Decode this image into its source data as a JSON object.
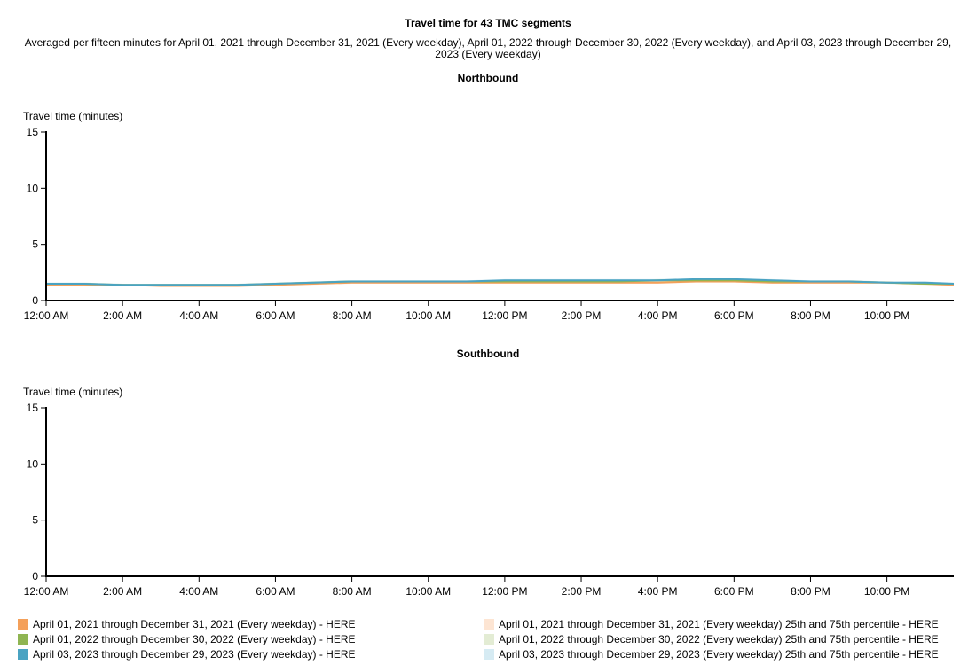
{
  "header": {
    "title": "Travel time for 43 TMC segments",
    "subtitle": "Averaged per fifteen minutes for April 01, 2021 through December 31, 2021 (Every weekday), April 01, 2022 through December 30, 2022 (Every weekday), and April 03, 2023 through December 29, 2023 (Every weekday)"
  },
  "colors": {
    "s2021": "#f4a05a",
    "s2022": "#8fb552",
    "s2023": "#4aa3c2",
    "b2021": "#fde5d3",
    "b2022": "#e3ecd4",
    "b2023": "#d6ebf3"
  },
  "legend": {
    "left": [
      {
        "label": "April 01, 2021 through December 31, 2021 (Every weekday) - HERE",
        "color": "#f4a05a"
      },
      {
        "label": "April 01, 2022 through December 30, 2022 (Every weekday) - HERE",
        "color": "#8fb552"
      },
      {
        "label": "April 03, 2023 through December 29, 2023 (Every weekday) - HERE",
        "color": "#4aa3c2"
      }
    ],
    "right": [
      {
        "label": "April 01, 2021 through December 31, 2021 (Every weekday) 25th and 75th percentile - HERE",
        "color": "#fde5d3"
      },
      {
        "label": "April 01, 2022 through December 30, 2022 (Every weekday) 25th and 75th percentile - HERE",
        "color": "#e3ecd4"
      },
      {
        "label": "April 03, 2023 through December 29, 2023 (Every weekday) 25th and 75th percentile - HERE",
        "color": "#d6ebf3"
      }
    ]
  },
  "chart_data": [
    {
      "type": "line",
      "title": "Northbound",
      "ylabel": "Travel time (minutes)",
      "xlabel": "",
      "ylim": [
        0,
        15
      ],
      "yticks": [
        0,
        5,
        10,
        15
      ],
      "xlim": [
        "12:00 AM",
        "11:45 PM"
      ],
      "xticks": [
        "12:00 AM",
        "2:00 AM",
        "4:00 AM",
        "6:00 AM",
        "8:00 AM",
        "10:00 AM",
        "12:00 PM",
        "2:00 PM",
        "4:00 PM",
        "6:00 PM",
        "8:00 PM",
        "10:00 PM"
      ],
      "x": [
        "12:00 AM",
        "1:00 AM",
        "2:00 AM",
        "3:00 AM",
        "4:00 AM",
        "5:00 AM",
        "6:00 AM",
        "7:00 AM",
        "8:00 AM",
        "9:00 AM",
        "10:00 AM",
        "11:00 AM",
        "12:00 PM",
        "1:00 PM",
        "2:00 PM",
        "3:00 PM",
        "4:00 PM",
        "5:00 PM",
        "6:00 PM",
        "7:00 PM",
        "8:00 PM",
        "9:00 PM",
        "10:00 PM",
        "11:00 PM",
        "11:45 PM"
      ],
      "series": [
        {
          "name": "April 01, 2021 through December 31, 2021 (Every weekday) - HERE",
          "values": [
            1.4,
            1.4,
            1.4,
            1.3,
            1.3,
            1.3,
            1.4,
            1.5,
            1.6,
            1.6,
            1.6,
            1.6,
            1.6,
            1.6,
            1.6,
            1.6,
            1.6,
            1.7,
            1.7,
            1.6,
            1.6,
            1.6,
            1.6,
            1.5,
            1.4
          ]
        },
        {
          "name": "April 01, 2022 through December 30, 2022 (Every weekday) - HERE",
          "values": [
            1.5,
            1.5,
            1.4,
            1.4,
            1.4,
            1.4,
            1.5,
            1.6,
            1.7,
            1.7,
            1.7,
            1.7,
            1.7,
            1.7,
            1.7,
            1.7,
            1.8,
            1.8,
            1.8,
            1.7,
            1.7,
            1.7,
            1.6,
            1.5,
            1.5
          ]
        },
        {
          "name": "April 03, 2023 through December 29, 2023 (Every weekday) - HERE",
          "values": [
            1.5,
            1.5,
            1.4,
            1.4,
            1.4,
            1.4,
            1.5,
            1.6,
            1.7,
            1.7,
            1.7,
            1.7,
            1.8,
            1.8,
            1.8,
            1.8,
            1.8,
            1.9,
            1.9,
            1.8,
            1.7,
            1.7,
            1.6,
            1.6,
            1.5
          ]
        }
      ],
      "bands": [
        {
          "name": "April 01, 2021 through December 31, 2021 (Every weekday) 25th and 75th percentile - HERE",
          "low": [
            1.3,
            1.3,
            1.3,
            1.3,
            1.3,
            1.3,
            1.3,
            1.4,
            1.5,
            1.5,
            1.5,
            1.5,
            1.5,
            1.5,
            1.5,
            1.5,
            1.5,
            1.6,
            1.6,
            1.5,
            1.5,
            1.5,
            1.5,
            1.4,
            1.3
          ],
          "high": [
            1.5,
            1.5,
            1.5,
            1.4,
            1.4,
            1.4,
            1.5,
            1.6,
            1.7,
            1.7,
            1.7,
            1.7,
            1.7,
            1.7,
            1.7,
            1.7,
            1.8,
            1.8,
            1.8,
            1.7,
            1.7,
            1.7,
            1.7,
            1.6,
            1.5
          ]
        },
        {
          "name": "April 01, 2022 through December 30, 2022 (Every weekday) 25th and 75th percentile - HERE",
          "low": [
            1.4,
            1.4,
            1.3,
            1.3,
            1.3,
            1.3,
            1.4,
            1.5,
            1.6,
            1.6,
            1.6,
            1.6,
            1.6,
            1.6,
            1.6,
            1.6,
            1.7,
            1.7,
            1.7,
            1.6,
            1.6,
            1.6,
            1.5,
            1.4,
            1.4
          ],
          "high": [
            1.6,
            1.6,
            1.5,
            1.5,
            1.5,
            1.5,
            1.6,
            1.7,
            1.8,
            1.8,
            1.8,
            1.8,
            1.8,
            1.8,
            1.8,
            1.8,
            1.9,
            1.9,
            1.9,
            1.8,
            1.8,
            1.8,
            1.7,
            1.6,
            1.6
          ]
        },
        {
          "name": "April 03, 2023 through December 29, 2023 (Every weekday) 25th and 75th percentile - HERE",
          "low": [
            1.4,
            1.4,
            1.3,
            1.3,
            1.3,
            1.3,
            1.4,
            1.5,
            1.6,
            1.6,
            1.6,
            1.6,
            1.7,
            1.7,
            1.7,
            1.7,
            1.7,
            1.8,
            1.8,
            1.7,
            1.6,
            1.6,
            1.5,
            1.5,
            1.4
          ],
          "high": [
            1.6,
            1.6,
            1.5,
            1.5,
            1.5,
            1.5,
            1.6,
            1.7,
            1.8,
            1.8,
            1.8,
            1.8,
            1.9,
            1.9,
            1.9,
            1.9,
            1.9,
            2.0,
            2.0,
            1.9,
            1.8,
            1.8,
            1.7,
            1.7,
            1.6
          ]
        }
      ]
    },
    {
      "type": "line",
      "title": "Southbound",
      "ylabel": "Travel time (minutes)",
      "xlabel": "",
      "ylim": [
        0,
        15
      ],
      "yticks": [
        0,
        5,
        10,
        15
      ],
      "xlim": [
        "12:00 AM",
        "11:45 PM"
      ],
      "xticks": [
        "12:00 AM",
        "2:00 AM",
        "4:00 AM",
        "6:00 AM",
        "8:00 AM",
        "10:00 AM",
        "12:00 PM",
        "2:00 PM",
        "4:00 PM",
        "6:00 PM",
        "8:00 PM",
        "10:00 PM"
      ],
      "x": [
        "12:00 AM",
        "11:45 PM"
      ],
      "series": [
        {
          "name": "April 01, 2021 through December 31, 2021 (Every weekday) - HERE",
          "values": [
            0,
            0
          ]
        },
        {
          "name": "April 01, 2022 through December 30, 2022 (Every weekday) - HERE",
          "values": [
            0,
            0
          ]
        },
        {
          "name": "April 03, 2023 through December 29, 2023 (Every weekday) - HERE",
          "values": [
            0,
            0
          ]
        }
      ],
      "bands": []
    }
  ]
}
